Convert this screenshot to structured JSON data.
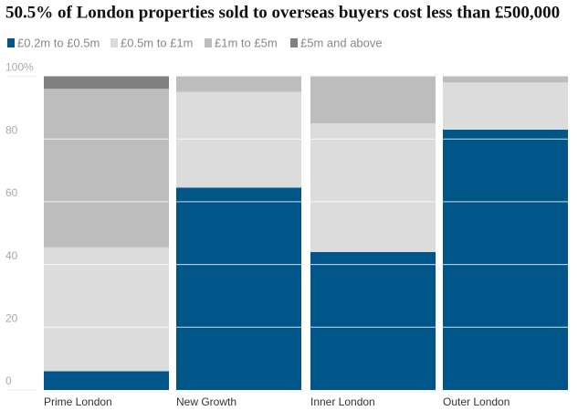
{
  "chart_data": {
    "type": "stacked-bar",
    "title": "50.5% of London properties sold to overseas buyers cost less than £500,000",
    "categories": [
      "Prime London",
      "New Growth",
      "Inner London",
      "Outer London"
    ],
    "series": [
      {
        "name": "£0.2m to £0.5m",
        "color": "#005689",
        "values": [
          6,
          64.5,
          44,
          83
        ]
      },
      {
        "name": "£0.5m to £1m",
        "color": "#dcdcdc",
        "values": [
          39.5,
          30.5,
          41,
          15
        ]
      },
      {
        "name": "£1m to £5m",
        "color": "#bdbdbd",
        "values": [
          50.5,
          5,
          15,
          2
        ]
      },
      {
        "name": "£5m and above",
        "color": "#808080",
        "values": [
          4,
          0,
          0,
          0
        ]
      }
    ],
    "ylim": [
      0,
      100
    ],
    "yticks": [
      0,
      20,
      40,
      60,
      80,
      {
        "value": 100,
        "label": "100%"
      }
    ],
    "grid": true
  }
}
